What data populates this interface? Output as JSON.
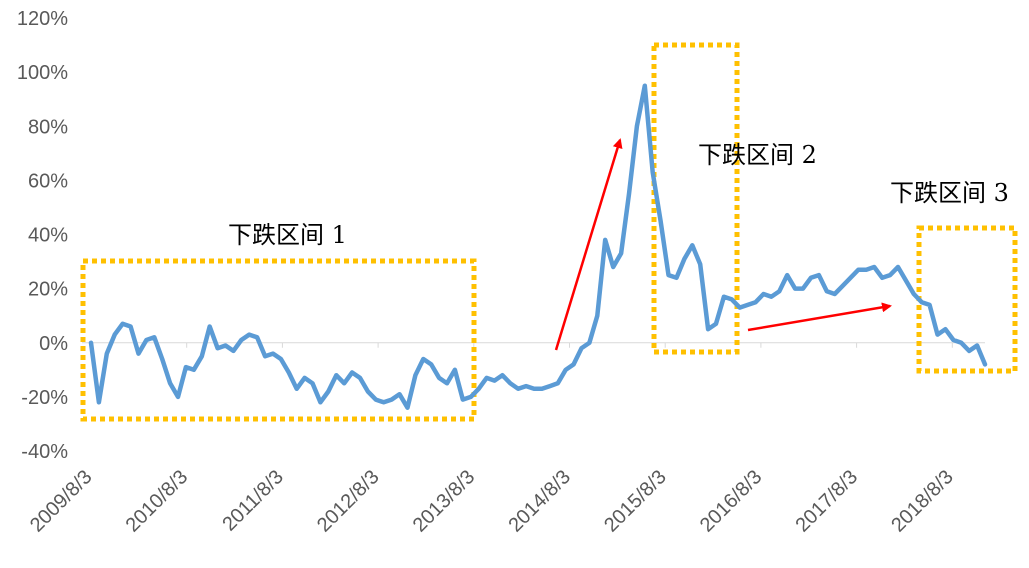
{
  "chart_data": {
    "type": "line",
    "title": "",
    "xlabel": "",
    "ylabel": "",
    "ylim": [
      -0.4,
      1.2
    ],
    "y_ticks": [
      -0.4,
      -0.2,
      0,
      0.2,
      0.4,
      0.6,
      0.8,
      1.0,
      1.2
    ],
    "y_tick_labels": [
      "-40%",
      "-20%",
      "0%",
      "20%",
      "40%",
      "60%",
      "80%",
      "100%",
      "120%"
    ],
    "x_tick_labels": [
      "2009/8/3",
      "2010/8/3",
      "2011/8/3",
      "2012/8/3",
      "2013/8/3",
      "2014/8/3",
      "2015/8/3",
      "2016/8/3",
      "2017/8/3",
      "2018/8/3"
    ],
    "grid": false,
    "legend": "none",
    "series_color": "#5B9BD5",
    "box_color": "#FFC000",
    "arrow_color": "#FF0000",
    "series": [
      {
        "values": [
          0.0,
          -0.22,
          -0.04,
          0.03,
          0.07,
          0.06,
          -0.04,
          0.01,
          0.02,
          -0.06,
          -0.15,
          -0.2,
          -0.09,
          -0.1,
          -0.05,
          0.06,
          -0.02,
          -0.01,
          -0.03,
          0.01,
          0.03,
          0.02,
          -0.05,
          -0.04,
          -0.06,
          -0.11,
          -0.17,
          -0.13,
          -0.15,
          -0.22,
          -0.18,
          -0.12,
          -0.15,
          -0.11,
          -0.13,
          -0.18,
          -0.21,
          -0.22,
          -0.21,
          -0.19,
          -0.24,
          -0.12,
          -0.06,
          -0.08,
          -0.13,
          -0.15,
          -0.1,
          -0.21,
          -0.2,
          -0.17,
          -0.13,
          -0.14,
          -0.12,
          -0.15,
          -0.17,
          -0.16,
          -0.17,
          -0.17,
          -0.16,
          -0.15,
          -0.1,
          -0.08,
          -0.02,
          0.0,
          0.1,
          0.38,
          0.28,
          0.33,
          0.55,
          0.8,
          0.95,
          0.63,
          0.45,
          0.25,
          0.24,
          0.31,
          0.36,
          0.29,
          0.05,
          0.07,
          0.17,
          0.16,
          0.13,
          0.14,
          0.15,
          0.18,
          0.17,
          0.19,
          0.25,
          0.2,
          0.2,
          0.24,
          0.25,
          0.19,
          0.18,
          0.21,
          0.24,
          0.27,
          0.27,
          0.28,
          0.24,
          0.25,
          0.28,
          0.23,
          0.18,
          0.15,
          0.14,
          0.03,
          0.05,
          0.01,
          0.0,
          -0.03,
          -0.01,
          -0.08
        ]
      }
    ],
    "annotations": [
      {
        "text": "下跌区间 1"
      },
      {
        "text": "下跌区间 2"
      },
      {
        "text": "下跌区间 3"
      }
    ]
  }
}
